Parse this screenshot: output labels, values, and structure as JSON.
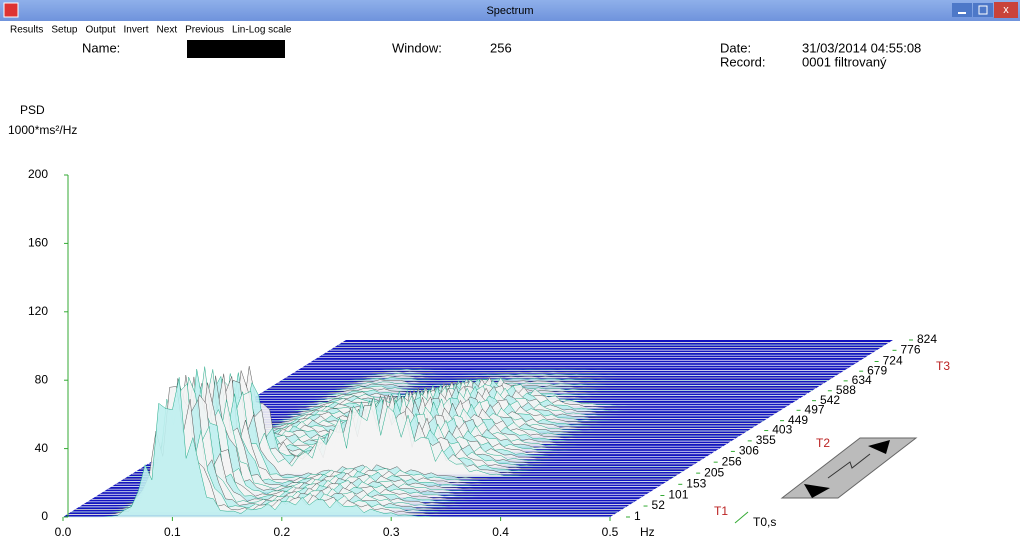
{
  "window": {
    "title": "Spectrum"
  },
  "menu": [
    "Results",
    "Setup",
    "Output",
    "Invert",
    "Next",
    "Previous",
    "Lin-Log scale"
  ],
  "header": {
    "name_label": "Name:",
    "window_label": "Window:",
    "window_value": "256",
    "date_label": "Date:",
    "date_value": "31/03/2014 04:55:08",
    "record_label": "Record:",
    "record_value": "0001 filtrovaný"
  },
  "chart_data": {
    "type": "waterfall",
    "y_label": "PSD",
    "y_unit": "1000*ms²/Hz",
    "x_label": "Hz",
    "z_label": "T0,s",
    "ylim": [
      0,
      200
    ],
    "yticks": [
      0,
      40,
      80,
      120,
      160,
      200
    ],
    "xlim": [
      0,
      0.5
    ],
    "xticks": [
      {
        "value": 0,
        "label": "0.0"
      },
      0.1,
      0.2,
      0.3,
      0.4,
      0.5
    ],
    "zlim": [
      1,
      824
    ],
    "zticks": [
      1,
      52,
      101,
      153,
      205,
      256,
      306,
      355,
      403,
      449,
      497,
      542,
      588,
      634,
      679,
      724,
      776,
      824
    ],
    "markers": [
      "T1",
      "T2",
      "T3"
    ]
  }
}
